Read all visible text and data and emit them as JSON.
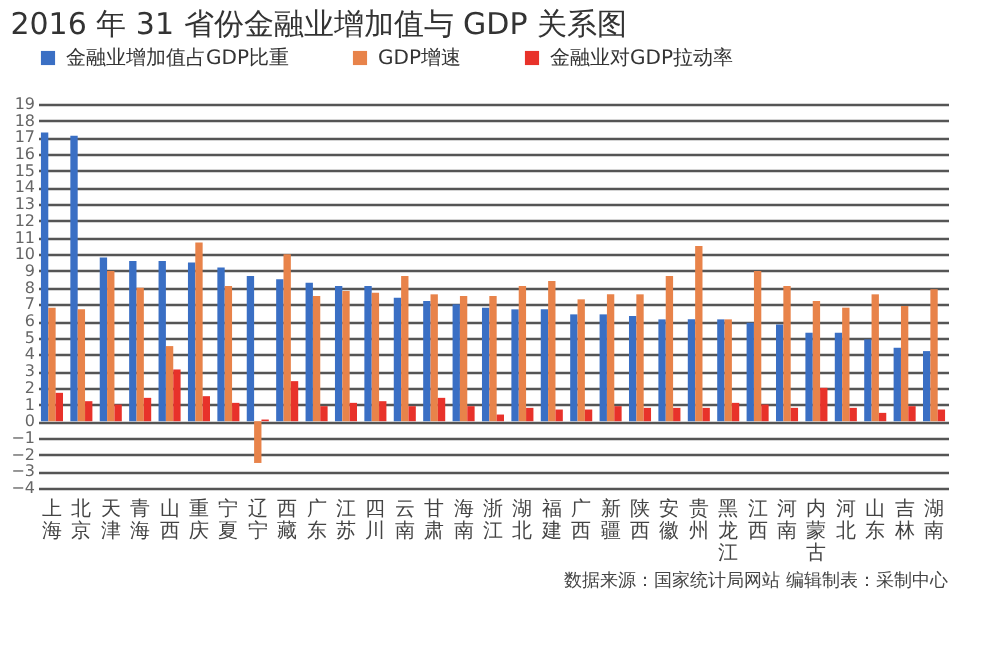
{
  "chart_data": {
    "type": "bar",
    "title": "2016 年 31 省份金融业增加值与 GDP 关系图",
    "categories": [
      "上海",
      "北京",
      "天津",
      "青海",
      "山西",
      "重庆",
      "宁夏",
      "辽宁",
      "西藏",
      "广东",
      "江苏",
      "四川",
      "云南",
      "甘肃",
      "海南",
      "浙江",
      "湖北",
      "福建",
      "广西",
      "新疆",
      "陕西",
      "安徽",
      "贵州",
      "黑龙江",
      "江西",
      "河南",
      "内蒙古",
      "河北",
      "山东",
      "吉林",
      "湖南"
    ],
    "series": [
      {
        "name": "金融业增加值占GDP比重",
        "color": "#3a6fc4",
        "values": [
          17.3,
          17.1,
          9.8,
          9.6,
          9.6,
          9.5,
          9.2,
          8.7,
          8.5,
          8.3,
          8.1,
          8.1,
          7.4,
          7.2,
          7.0,
          6.8,
          6.7,
          6.7,
          6.4,
          6.4,
          6.3,
          6.1,
          6.1,
          6.1,
          5.9,
          5.8,
          5.3,
          5.3,
          4.9,
          4.4,
          4.2
        ]
      },
      {
        "name": "GDP增速",
        "color": "#e8834a",
        "values": [
          6.8,
          6.7,
          9.0,
          8.0,
          4.5,
          10.7,
          8.1,
          -2.5,
          10.0,
          7.5,
          7.8,
          7.7,
          8.7,
          7.6,
          7.5,
          7.5,
          8.1,
          8.4,
          7.3,
          7.6,
          7.6,
          8.7,
          10.5,
          6.1,
          9.0,
          8.1,
          7.2,
          6.8,
          7.6,
          6.9,
          7.9
        ]
      },
      {
        "name": "金融业对GDP拉动率",
        "color": "#e8322a",
        "values": [
          1.7,
          1.2,
          1.0,
          1.4,
          3.1,
          1.5,
          1.1,
          0.1,
          2.4,
          0.9,
          1.1,
          1.2,
          0.9,
          1.4,
          0.9,
          0.4,
          0.8,
          0.7,
          0.7,
          0.9,
          0.8,
          0.8,
          0.8,
          1.1,
          1.0,
          0.8,
          2.0,
          0.8,
          0.5,
          0.9,
          0.7
        ]
      }
    ],
    "ylim": [
      -4,
      19
    ],
    "yticks": [
      -4,
      -3,
      -2,
      -1,
      0,
      1,
      2,
      3,
      4,
      5,
      6,
      7,
      8,
      9,
      10,
      11,
      12,
      13,
      14,
      15,
      16,
      17,
      18,
      19
    ],
    "grid": "y",
    "legend": "top",
    "annotations": [
      "数据来源：国家统计局网站   编辑制表：采制中心"
    ]
  }
}
